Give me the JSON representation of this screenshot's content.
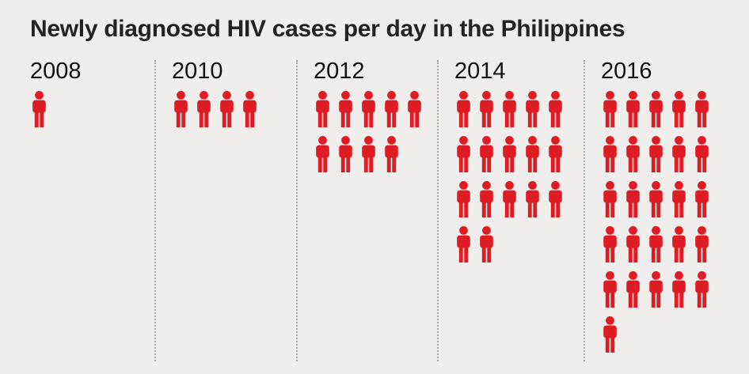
{
  "title": "Newly diagnosed HIV cases per day in the Philippines",
  "colors": {
    "background": "#efeeec",
    "figure_red": "#dd1c24",
    "title_text": "#262224",
    "year_text": "#121212",
    "divider": "#a2a2a2"
  },
  "chart_data": {
    "type": "pictogram",
    "title": "Newly diagnosed HIV cases per day in the Philippines",
    "categories": [
      "2008",
      "2010",
      "2012",
      "2014",
      "2016"
    ],
    "values": [
      1,
      4,
      9,
      17,
      26
    ],
    "icons_per_row": 5,
    "icon": "person-icon",
    "icon_color": "#dd1c24",
    "legend_position": "none",
    "grid": false,
    "notes": "each red person figure represents one newly diagnosed case per day"
  }
}
